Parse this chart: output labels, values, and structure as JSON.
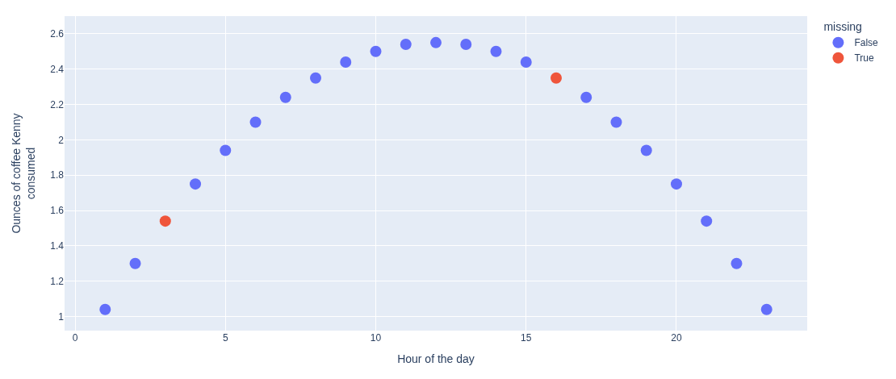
{
  "chart_data": {
    "type": "scatter",
    "xlabel": "Hour of the day",
    "ylabel": "Ounces of coffee Kenny consumed",
    "legend_title": "missing",
    "series": [
      {
        "name": "False",
        "color": "#636efa",
        "x": [
          1,
          2,
          4,
          5,
          6,
          7,
          8,
          9,
          10,
          11,
          12,
          13,
          14,
          15,
          17,
          18,
          19,
          20,
          21,
          22,
          23
        ],
        "values": [
          1.04,
          1.3,
          1.75,
          1.94,
          2.1,
          2.24,
          2.35,
          2.44,
          2.5,
          2.54,
          2.55,
          2.54,
          2.5,
          2.44,
          2.24,
          2.1,
          1.94,
          1.75,
          1.54,
          1.3,
          1.04
        ]
      },
      {
        "name": "True",
        "color": "#ef553b",
        "x": [
          3,
          16
        ],
        "values": [
          1.54,
          2.35
        ]
      }
    ],
    "xlim": [
      -0.35,
      24.35
    ],
    "xticks": [
      0,
      5,
      10,
      15,
      20
    ],
    "ylim": [
      0.92,
      2.7
    ],
    "yticks": [
      1,
      1.2,
      1.4,
      1.6,
      1.8,
      2,
      2.2,
      2.4,
      2.6
    ],
    "grid": true,
    "legend": "top right",
    "marker": "circle"
  }
}
